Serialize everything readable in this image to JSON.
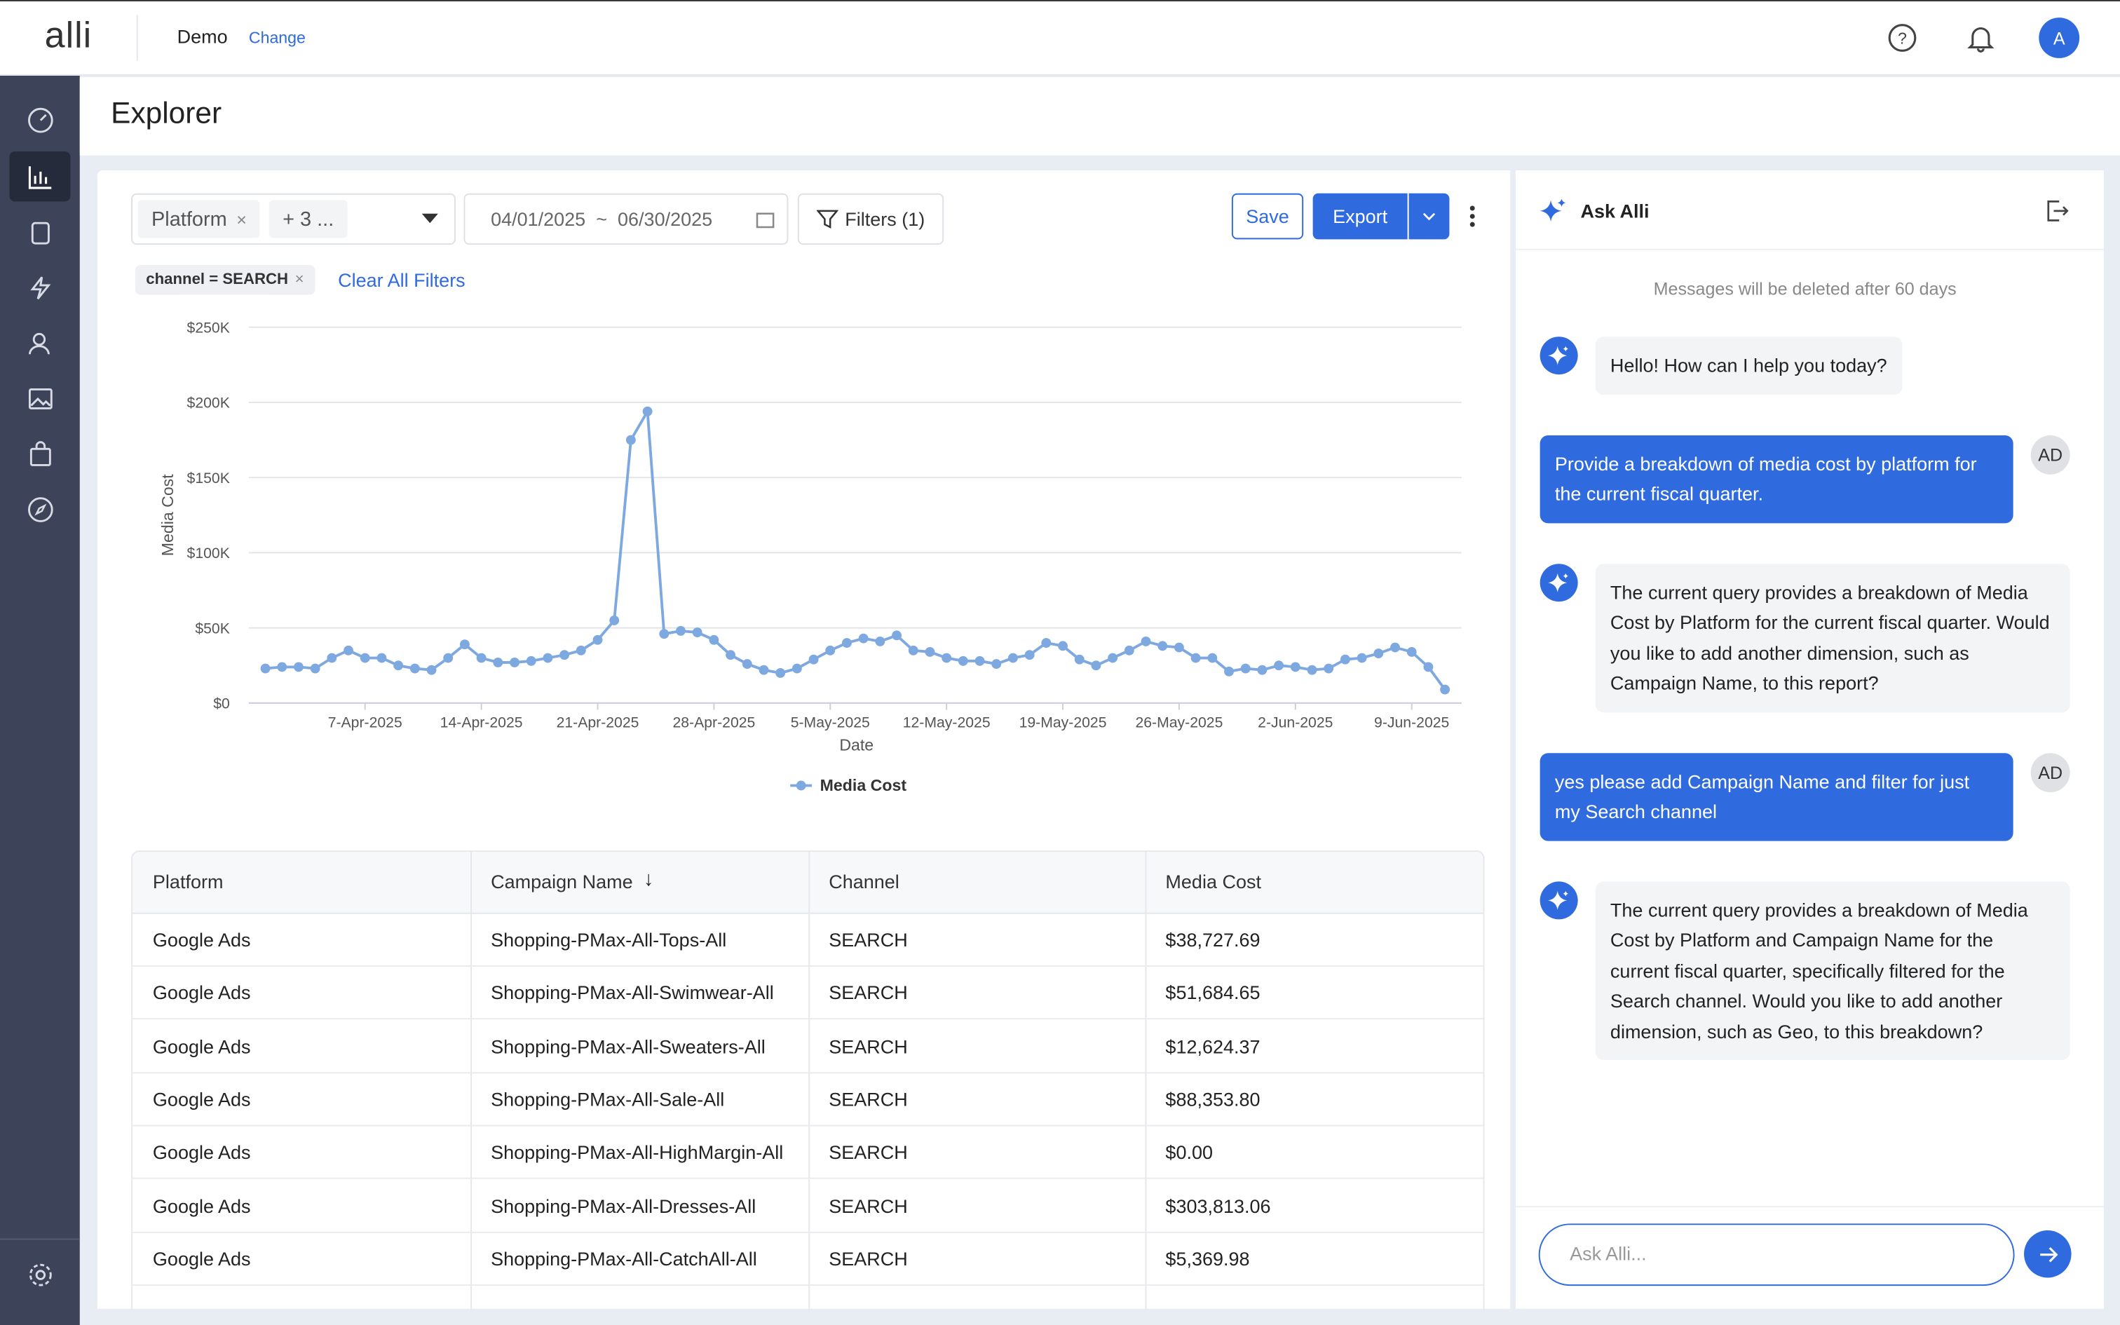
{
  "header": {
    "logo": "alli",
    "workspace": "Demo",
    "change": "Change",
    "avatar": "A"
  },
  "explorer": {
    "title": "Explorer",
    "dimension": "Platform",
    "more_dimensions": "+ 3 ...",
    "date_start": "04/01/2025",
    "date_sep": "~",
    "date_end": "06/30/2025",
    "filters": "Filters (1)",
    "save": "Save",
    "export": "Export",
    "filter_chip": "channel = SEARCH",
    "clear_filters": "Clear All Filters"
  },
  "chart_data": {
    "type": "line",
    "x_label": "Date",
    "y_label": "Media Cost",
    "x": [
      "2025-04-01",
      "2025-04-02",
      "2025-04-03",
      "2025-04-04",
      "2025-04-05",
      "2025-04-06",
      "2025-04-07",
      "2025-04-08",
      "2025-04-09",
      "2025-04-10",
      "2025-04-11",
      "2025-04-12",
      "2025-04-13",
      "2025-04-14",
      "2025-04-15",
      "2025-04-16",
      "2025-04-17",
      "2025-04-18",
      "2025-04-19",
      "2025-04-20",
      "2025-04-21",
      "2025-04-22",
      "2025-04-23",
      "2025-04-24",
      "2025-04-25",
      "2025-04-26",
      "2025-04-27",
      "2025-04-28",
      "2025-04-29",
      "2025-04-30",
      "2025-05-01",
      "2025-05-02",
      "2025-05-03",
      "2025-05-04",
      "2025-05-05",
      "2025-05-06",
      "2025-05-07",
      "2025-05-08",
      "2025-05-09",
      "2025-05-10",
      "2025-05-11",
      "2025-05-12",
      "2025-05-13",
      "2025-05-14",
      "2025-05-15",
      "2025-05-16",
      "2025-05-17",
      "2025-05-18",
      "2025-05-19",
      "2025-05-20",
      "2025-05-21",
      "2025-05-22",
      "2025-05-23",
      "2025-05-24",
      "2025-05-25",
      "2025-05-26",
      "2025-05-27",
      "2025-05-28",
      "2025-05-29",
      "2025-05-30",
      "2025-05-31",
      "2025-06-01",
      "2025-06-02",
      "2025-06-03",
      "2025-06-04",
      "2025-06-05",
      "2025-06-06",
      "2025-06-07",
      "2025-06-08",
      "2025-06-09",
      "2025-06-10",
      "2025-06-11"
    ],
    "series": [
      {
        "name": "Media Cost",
        "color": "#7ea8e0",
        "values": [
          23000,
          24000,
          24000,
          23000,
          30000,
          35000,
          30000,
          30000,
          25000,
          23000,
          22000,
          30000,
          39000,
          30000,
          27000,
          27000,
          28000,
          30000,
          32000,
          35000,
          42000,
          55000,
          175000,
          194000,
          46000,
          48000,
          47000,
          42000,
          32000,
          26000,
          22000,
          20000,
          23000,
          29000,
          35000,
          40000,
          43000,
          41000,
          45000,
          35000,
          34000,
          30000,
          28000,
          28000,
          26000,
          30000,
          32000,
          40000,
          38000,
          29000,
          25000,
          30000,
          35000,
          41000,
          38000,
          37000,
          30000,
          30000,
          21000,
          23000,
          22000,
          25000,
          24000,
          22000,
          23000,
          29000,
          30000,
          33000,
          37000,
          34000,
          24000,
          9000
        ]
      }
    ],
    "xlim": [
      "2025-03-31",
      "2025-06-12"
    ],
    "xticks": [
      {
        "value": "2025-04-07",
        "label": "7-Apr-2025"
      },
      {
        "value": "2025-04-14",
        "label": "14-Apr-2025"
      },
      {
        "value": "2025-04-21",
        "label": "21-Apr-2025"
      },
      {
        "value": "2025-04-28",
        "label": "28-Apr-2025"
      },
      {
        "value": "2025-05-05",
        "label": "5-May-2025"
      },
      {
        "value": "2025-05-12",
        "label": "12-May-2025"
      },
      {
        "value": "2025-05-19",
        "label": "19-May-2025"
      },
      {
        "value": "2025-05-26",
        "label": "26-May-2025"
      },
      {
        "value": "2025-06-02",
        "label": "2-Jun-2025"
      },
      {
        "value": "2025-06-09",
        "label": "9-Jun-2025"
      }
    ],
    "ylim": [
      0,
      250000
    ],
    "yticks": [
      {
        "value": 0,
        "label": "$0"
      },
      {
        "value": 50000,
        "label": "$50K"
      },
      {
        "value": 100000,
        "label": "$100K"
      },
      {
        "value": 150000,
        "label": "$150K"
      },
      {
        "value": 200000,
        "label": "$200K"
      },
      {
        "value": 250000,
        "label": "$250K"
      }
    ],
    "grid": true,
    "legend": "bottom"
  },
  "table": {
    "columns": [
      "Platform",
      "Campaign Name",
      "Channel",
      "Media Cost"
    ],
    "rows": [
      [
        "Google Ads",
        "Shopping-PMax-All-Tops-All",
        "SEARCH",
        "$38,727.69"
      ],
      [
        "Google Ads",
        "Shopping-PMax-All-Swimwear-All",
        "SEARCH",
        "$51,684.65"
      ],
      [
        "Google Ads",
        "Shopping-PMax-All-Sweaters-All",
        "SEARCH",
        "$12,624.37"
      ],
      [
        "Google Ads",
        "Shopping-PMax-All-Sale-All",
        "SEARCH",
        "$88,353.80"
      ],
      [
        "Google Ads",
        "Shopping-PMax-All-HighMargin-All",
        "SEARCH",
        "$0.00"
      ],
      [
        "Google Ads",
        "Shopping-PMax-All-Dresses-All",
        "SEARCH",
        "$303,813.06"
      ],
      [
        "Google Ads",
        "Shopping-PMax-All-CatchAll-All",
        "SEARCH",
        "$5,369.98"
      ]
    ]
  },
  "chat": {
    "title": "Ask Alli",
    "notice": "Messages will be deleted after 60 days",
    "user_avatar": "AD",
    "placeholder": "Ask Alli...",
    "messages": [
      {
        "role": "assistant",
        "text": "Hello! How can I help you today?"
      },
      {
        "role": "user",
        "text": "Provide a breakdown of media cost by platform for the current fiscal quarter."
      },
      {
        "role": "assistant",
        "text": "The current query provides a breakdown of Media Cost by Platform for the current fiscal quarter. Would you like to add another dimension, such as Campaign Name, to this report?"
      },
      {
        "role": "user",
        "text": "yes please add Campaign Name and filter for just my Search channel"
      },
      {
        "role": "assistant",
        "text": "The current query provides a breakdown of Media Cost by Platform and Campaign Name for the current fiscal quarter, specifically filtered for the Search channel. Would you like to add another dimension, such as Geo, to this breakdown?"
      }
    ]
  }
}
